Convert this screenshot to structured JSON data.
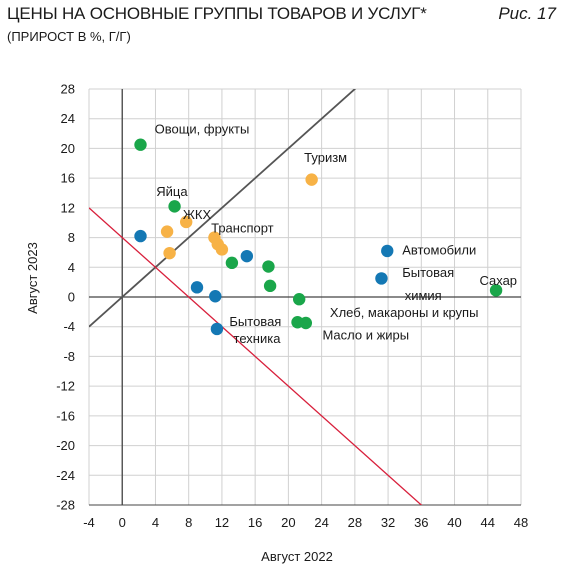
{
  "header": {
    "title": "ЦЕНЫ НА ОСНОВНЫЕ ГРУППЫ ТОВАРОВ И УСЛУГ*",
    "subtitle": "(ПРИРОСТ В %, Г/Г)",
    "figure_label": "Рис. 17"
  },
  "chart_data": {
    "type": "scatter",
    "xlabel": "Август 2022",
    "ylabel": "Август 2023",
    "xlim": [
      -4,
      48
    ],
    "ylim": [
      -28,
      28
    ],
    "x_ticks": [
      -4,
      0,
      4,
      8,
      12,
      16,
      20,
      24,
      28,
      32,
      36,
      40,
      44,
      48
    ],
    "y_ticks": [
      28,
      24,
      20,
      16,
      12,
      8,
      4,
      0,
      -4,
      -8,
      -12,
      -16,
      -20,
      -24,
      -28
    ],
    "grid": true,
    "colors": {
      "green": "#1aa64a",
      "blue": "#1478b4",
      "orange": "#f7b246",
      "diagonal": "#555555",
      "redline": "#d8203c"
    },
    "reference_lines": [
      {
        "kind": "y_equals_x",
        "color": "diagonal"
      },
      {
        "kind": "x_plus_y_equals_8",
        "color": "redline"
      }
    ],
    "points": [
      {
        "x": 2.2,
        "y": 20.5,
        "c": "green"
      },
      {
        "x": 2.2,
        "y": 8.2,
        "c": "blue"
      },
      {
        "x": 6.3,
        "y": 12.2,
        "c": "green"
      },
      {
        "x": 5.4,
        "y": 8.8,
        "c": "orange"
      },
      {
        "x": 5.7,
        "y": 5.9,
        "c": "orange"
      },
      {
        "x": 7.7,
        "y": 10.1,
        "c": "orange"
      },
      {
        "x": 9.0,
        "y": 1.3,
        "c": "blue"
      },
      {
        "x": 11.2,
        "y": 0.1,
        "c": "blue"
      },
      {
        "x": 11.1,
        "y": 8.0,
        "c": "orange"
      },
      {
        "x": 11.5,
        "y": 7.1,
        "c": "orange"
      },
      {
        "x": 12.0,
        "y": 6.4,
        "c": "orange"
      },
      {
        "x": 11.4,
        "y": -4.3,
        "c": "blue"
      },
      {
        "x": 13.2,
        "y": 4.6,
        "c": "green"
      },
      {
        "x": 15.0,
        "y": 5.5,
        "c": "blue"
      },
      {
        "x": 17.6,
        "y": 4.1,
        "c": "green"
      },
      {
        "x": 17.8,
        "y": 1.5,
        "c": "green"
      },
      {
        "x": 21.3,
        "y": -0.3,
        "c": "green"
      },
      {
        "x": 21.1,
        "y": -3.4,
        "c": "green"
      },
      {
        "x": 22.1,
        "y": -3.5,
        "c": "green"
      },
      {
        "x": 22.8,
        "y": 15.8,
        "c": "orange"
      },
      {
        "x": 31.9,
        "y": 6.2,
        "c": "blue"
      },
      {
        "x": 31.2,
        "y": 2.5,
        "c": "blue"
      },
      {
        "x": 45.0,
        "y": 0.9,
        "c": "green"
      }
    ],
    "annotations": [
      {
        "text": "Овощи, фрукты",
        "x": 3.9,
        "y": 22.0
      },
      {
        "text": "Яйца",
        "x": 4.1,
        "y": 13.6
      },
      {
        "text": "ЖКХ",
        "x": 7.3,
        "y": 10.5
      },
      {
        "text": "Транспорт",
        "x": 10.7,
        "y": 8.7
      },
      {
        "text": "Туризм",
        "x": 21.9,
        "y": 18.2
      },
      {
        "text": "Автомобили",
        "x": 33.7,
        "y": 5.7
      },
      {
        "text": "Бытовая",
        "x": 33.7,
        "y": 2.7
      },
      {
        "text": "химия",
        "x": 34.0,
        "y": -0.4
      },
      {
        "text": "Сахар",
        "x": 43.0,
        "y": 1.6
      },
      {
        "text": "Хлеб, макароны и крупы",
        "x": 25.0,
        "y": -2.7
      },
      {
        "text": "Масло и жиры",
        "x": 24.1,
        "y": -5.7
      },
      {
        "text": "Бытовая",
        "x": 12.9,
        "y": -3.9
      },
      {
        "text": "техника",
        "x": 13.4,
        "y": -6.2
      }
    ]
  }
}
